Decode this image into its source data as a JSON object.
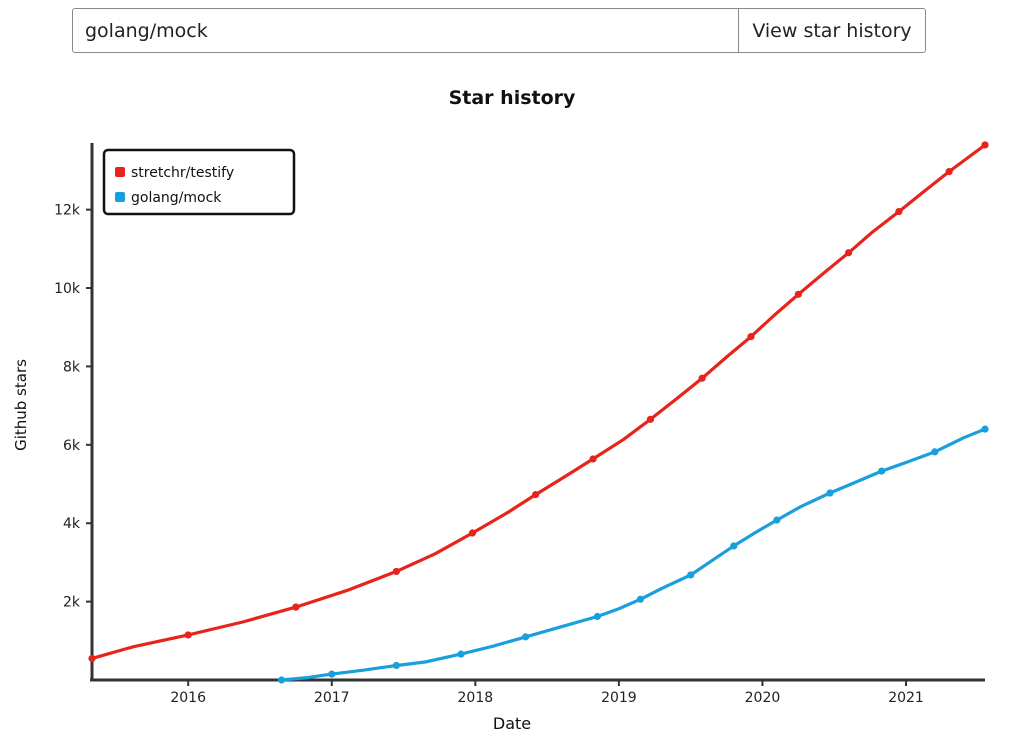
{
  "search": {
    "value": "golang/mock",
    "button_label": "View star history"
  },
  "colors": {
    "stretchr": "#e8231b",
    "golang": "#1a9fdd",
    "axis": "#333333"
  },
  "chart_data": {
    "type": "line",
    "title": "Star history",
    "xlabel": "Date",
    "ylabel": "Github stars",
    "x_ticks": [
      "2016",
      "2017",
      "2018",
      "2019",
      "2020",
      "2021"
    ],
    "y_ticks": [
      "2k",
      "4k",
      "6k",
      "8k",
      "10k",
      "12k"
    ],
    "xlim": [
      2015.33,
      2021.55
    ],
    "ylim": [
      0,
      13700
    ],
    "legend_position": "top-left",
    "series": [
      {
        "name": "stretchr/testify",
        "color": "#e8231b",
        "points": [
          [
            2015.33,
            550
          ],
          [
            2015.62,
            850
          ],
          [
            2016.0,
            1150
          ],
          [
            2016.38,
            1480
          ],
          [
            2016.75,
            1860
          ],
          [
            2017.12,
            2300
          ],
          [
            2017.45,
            2770
          ],
          [
            2017.72,
            3220
          ],
          [
            2017.98,
            3750
          ],
          [
            2018.22,
            4260
          ],
          [
            2018.42,
            4730
          ],
          [
            2018.62,
            5180
          ],
          [
            2018.82,
            5640
          ],
          [
            2019.03,
            6130
          ],
          [
            2019.22,
            6650
          ],
          [
            2019.4,
            7170
          ],
          [
            2019.58,
            7700
          ],
          [
            2019.75,
            8240
          ],
          [
            2019.92,
            8760
          ],
          [
            2020.08,
            9300
          ],
          [
            2020.25,
            9840
          ],
          [
            2020.43,
            10390
          ],
          [
            2020.6,
            10900
          ],
          [
            2020.77,
            11440
          ],
          [
            2020.95,
            11950
          ],
          [
            2021.12,
            12450
          ],
          [
            2021.3,
            12970
          ],
          [
            2021.55,
            13650
          ]
        ]
      },
      {
        "name": "golang/mock",
        "color": "#1a9fdd",
        "points": [
          [
            2016.65,
            0
          ],
          [
            2016.83,
            60
          ],
          [
            2017.0,
            150
          ],
          [
            2017.22,
            250
          ],
          [
            2017.45,
            370
          ],
          [
            2017.65,
            460
          ],
          [
            2017.9,
            660
          ],
          [
            2018.12,
            860
          ],
          [
            2018.35,
            1100
          ],
          [
            2018.6,
            1360
          ],
          [
            2018.85,
            1620
          ],
          [
            2019.0,
            1820
          ],
          [
            2019.15,
            2060
          ],
          [
            2019.3,
            2340
          ],
          [
            2019.5,
            2680
          ],
          [
            2019.65,
            3050
          ],
          [
            2019.8,
            3420
          ],
          [
            2019.95,
            3760
          ],
          [
            2020.1,
            4080
          ],
          [
            2020.27,
            4430
          ],
          [
            2020.47,
            4770
          ],
          [
            2020.65,
            5050
          ],
          [
            2020.83,
            5330
          ],
          [
            2021.0,
            5550
          ],
          [
            2021.2,
            5820
          ],
          [
            2021.4,
            6180
          ],
          [
            2021.55,
            6400
          ]
        ]
      }
    ]
  }
}
